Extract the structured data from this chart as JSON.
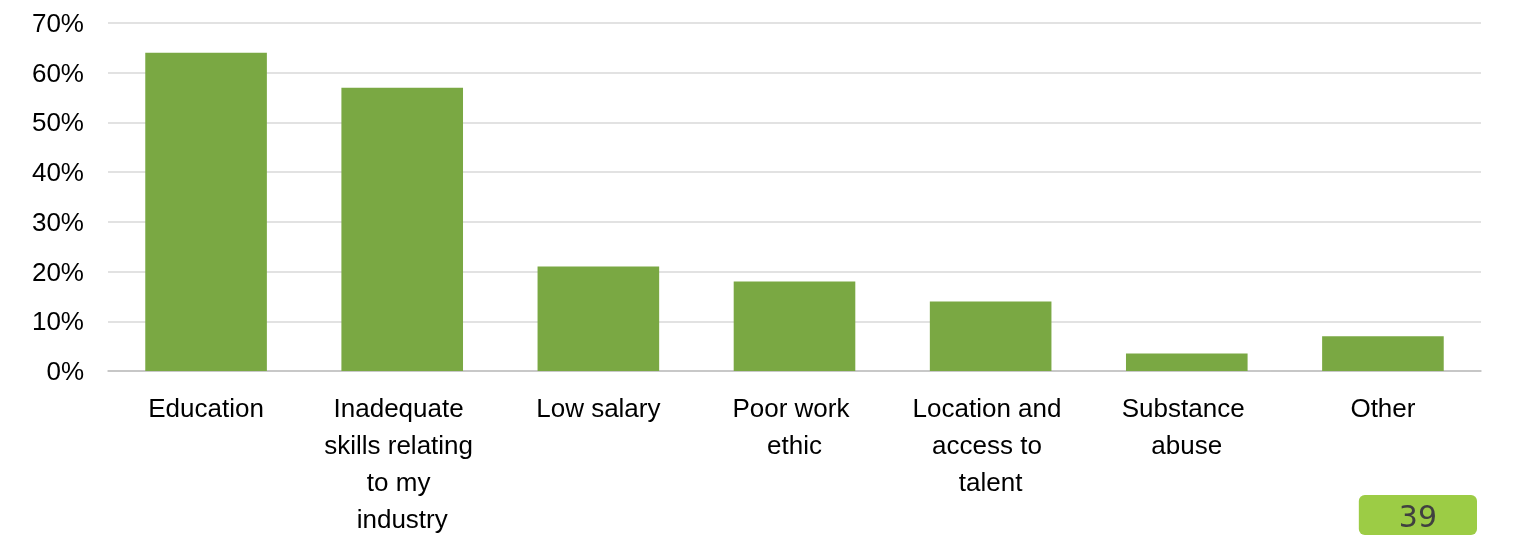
{
  "chart_data": {
    "type": "bar",
    "categories": [
      "Education",
      "Inadequate skills relating to my industry",
      "Low salary",
      "Poor work ethic",
      "Location and access to talent",
      "Substance abuse",
      "Other"
    ],
    "values": [
      64,
      57,
      21,
      18,
      14,
      3.5,
      7
    ],
    "color": "#7aa843",
    "ylim": [
      0,
      70
    ],
    "yticks": [
      {
        "value": 0,
        "label": "0%"
      },
      {
        "value": 10,
        "label": "10%"
      },
      {
        "value": 20,
        "label": "20%"
      },
      {
        "value": 30,
        "label": "30%"
      },
      {
        "value": 40,
        "label": "40%"
      },
      {
        "value": 50,
        "label": "50%"
      },
      {
        "value": 60,
        "label": "60%"
      },
      {
        "value": 70,
        "label": "70%"
      }
    ],
    "grid": "y",
    "annotations": [
      "39"
    ]
  }
}
